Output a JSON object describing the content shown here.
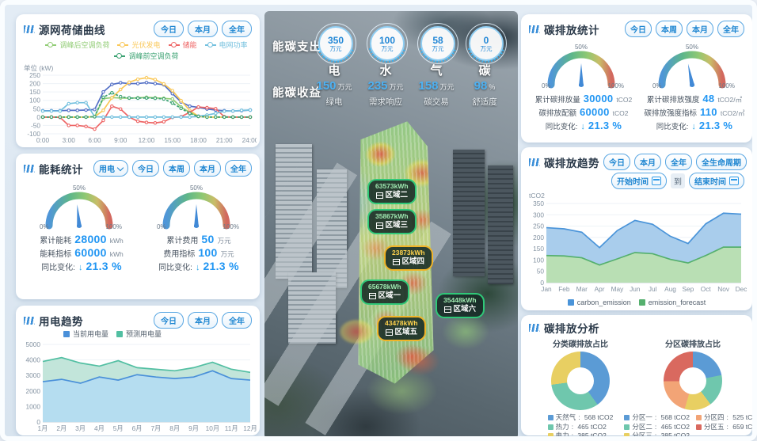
{
  "left": {
    "source_curve": {
      "title": "源网荷储曲线",
      "buttons": [
        "今日",
        "本月",
        "全年"
      ]
    },
    "energy_stats": {
      "title": "能耗统计",
      "dropdown": "用电",
      "buttons": [
        "今日",
        "本周",
        "本月",
        "全年"
      ],
      "gauges": [
        {
          "scale": [
            "0%",
            "50%",
            "100%"
          ],
          "pct": 0.47,
          "rows": [
            {
              "label": "累计能耗",
              "value": "28000",
              "unit": "kWh"
            },
            {
              "label": "能耗指标",
              "value": "60000",
              "unit": "kWh"
            }
          ],
          "yoy_label": "同比变化:",
          "yoy_arrow": "↓",
          "yoy_value": "21.3 %"
        },
        {
          "scale": [
            "0%",
            "50%",
            "100%"
          ],
          "pct": 0.5,
          "rows": [
            {
              "label": "累计费用",
              "value": "50",
              "unit": "万元"
            },
            {
              "label": "费用指标",
              "value": "100",
              "unit": "万元"
            }
          ],
          "yoy_label": "同比变化:",
          "yoy_arrow": "↓",
          "yoy_value": "21.3 %"
        }
      ]
    },
    "power_trend": {
      "title": "用电趋势",
      "buttons": [
        "今日",
        "本月",
        "全年"
      ]
    }
  },
  "center": {
    "expense": {
      "label": "能碳支出",
      "items": [
        {
          "value": "350",
          "unit": "万元",
          "name": "电"
        },
        {
          "value": "100",
          "unit": "万元",
          "name": "水"
        },
        {
          "value": "58",
          "unit": "万元",
          "name": "气"
        },
        {
          "value": "0",
          "unit": "万元",
          "name": "碳"
        }
      ]
    },
    "income": {
      "label": "能碳收益",
      "items": [
        {
          "value": "150",
          "unit": "万元",
          "name": "绿电"
        },
        {
          "value": "235",
          "unit": "万元",
          "name": "需求响应"
        },
        {
          "value": "158",
          "unit": "万元",
          "name": "碳交易"
        },
        {
          "value": "98",
          "unit": "%",
          "name": "舒适度"
        }
      ]
    },
    "zones": [
      {
        "value": "63573kWh",
        "name": "区域二",
        "style": "green"
      },
      {
        "value": "35867kWh",
        "name": "区域三",
        "style": "green"
      },
      {
        "value": "23873kWh",
        "name": "区域四",
        "style": "yellow"
      },
      {
        "value": "65678kWh",
        "name": "区域一",
        "style": "green"
      },
      {
        "value": "35448kWh",
        "name": "区域六",
        "style": "green"
      },
      {
        "value": "43478kWh",
        "name": "区域五",
        "style": "yellow"
      }
    ]
  },
  "right": {
    "carbon_stats": {
      "title": "碳排放统计",
      "buttons": [
        "今日",
        "本周",
        "本月",
        "全年"
      ],
      "gauges": [
        {
          "scale": [
            "0%",
            "50%",
            "100%"
          ],
          "pct": 0.5,
          "rows": [
            {
              "label": "累计碳排放量",
              "value": "30000",
              "unit": "tCO2"
            },
            {
              "label": "碳排放配额",
              "value": "60000",
              "unit": "tCO2"
            }
          ],
          "yoy_label": "同比变化:",
          "yoy_arrow": "↓",
          "yoy_value": "21.3 %"
        },
        {
          "scale": [
            "0%",
            "50%",
            "100%"
          ],
          "pct": 0.44,
          "rows": [
            {
              "label": "累计碳排放强度",
              "value": "48",
              "unit": "tCO2/㎡"
            },
            {
              "label": "碳排放强度指标",
              "value": "110",
              "unit": "tCO2/㎡"
            }
          ],
          "yoy_label": "同比变化:",
          "yoy_arrow": "↓",
          "yoy_value": "21.3 %"
        }
      ]
    },
    "carbon_trend": {
      "title": "碳排放趋势",
      "buttons": [
        "今日",
        "本月",
        "全年",
        "全生命周期"
      ],
      "date_start": "开始时间",
      "date_to": "到",
      "date_end": "结束时间"
    },
    "carbon_analysis": {
      "title": "碳排放分析"
    }
  },
  "chart_data": [
    {
      "id": "source_curve",
      "type": "line",
      "title": "源网荷储曲线",
      "ylabel": "单位 (kW)",
      "ylim": [
        -100,
        250
      ],
      "yticks": [
        250,
        200,
        150,
        100,
        50,
        0,
        -50,
        -100
      ],
      "x_labels": [
        "0:00",
        "3:00",
        "6:00",
        "9:00",
        "12:00",
        "15:00",
        "18:00",
        "21:00",
        "24:00"
      ],
      "label_every": 3,
      "markers": true,
      "legend_position": "top",
      "series": [
        {
          "name": "",
          "color": "#5470c6",
          "values": [
            38,
            38,
            38,
            40,
            40,
            42,
            45,
            150,
            195,
            205,
            200,
            200,
            206,
            200,
            193,
            140,
            90,
            65,
            58,
            48,
            42,
            38,
            36,
            38,
            42
          ]
        },
        {
          "name": "调峰后空调负荷",
          "color": "#91cc75",
          "values": [
            0,
            0,
            0,
            0,
            0,
            0,
            2,
            110,
            116,
            114,
            113,
            115,
            118,
            115,
            112,
            108,
            60,
            28,
            4,
            0,
            0,
            0,
            0,
            0,
            0
          ]
        },
        {
          "name": "光伏发电",
          "color": "#fac858",
          "values": [
            0,
            0,
            0,
            0,
            0,
            0,
            2,
            40,
            115,
            165,
            208,
            226,
            235,
            224,
            198,
            158,
            98,
            40,
            5,
            0,
            0,
            0,
            0,
            0,
            0
          ]
        },
        {
          "name": "储能",
          "color": "#ee6666",
          "values": [
            0,
            0,
            -2,
            -50,
            -50,
            -56,
            -72,
            -20,
            65,
            48,
            0,
            -25,
            -32,
            -35,
            -28,
            -2,
            2,
            28,
            60,
            56,
            50,
            2,
            0,
            0,
            0
          ]
        },
        {
          "name": "电网功率",
          "color": "#73c0de",
          "values": [
            36,
            36,
            36,
            80,
            86,
            86,
            2,
            0,
            0,
            0,
            0,
            0,
            0,
            0,
            0,
            0,
            0,
            0,
            5,
            12,
            22,
            35,
            36,
            40,
            42
          ]
        },
        {
          "name": "调峰前空调负荷",
          "color": "#3ba272",
          "dash": "3,2",
          "values": [
            0,
            0,
            0,
            0,
            0,
            0,
            2,
            118,
            145,
            122,
            114,
            113,
            114,
            112,
            108,
            84,
            52,
            22,
            4,
            0,
            0,
            0,
            0,
            0,
            0
          ]
        }
      ]
    },
    {
      "id": "power_trend",
      "type": "area",
      "title": "用电趋势",
      "ylim": [
        0,
        5000
      ],
      "yticks": [
        5000,
        4000,
        3000,
        2000,
        1000,
        0
      ],
      "categories": [
        "1月",
        "2月",
        "3月",
        "4月",
        "5月",
        "6月",
        "7月",
        "8月",
        "9月",
        "10月",
        "11月",
        "12月"
      ],
      "label_every": 1,
      "series": [
        {
          "name": "预测用电量",
          "color": "#52bfa2",
          "fill": "#c2e5da",
          "values": [
            3900,
            4150,
            3800,
            3600,
            3950,
            3500,
            3400,
            3300,
            3500,
            3850,
            3400,
            3200
          ]
        },
        {
          "name": "当前用电量",
          "color": "#4a90d9",
          "fill": "#b5ddf0",
          "values": [
            2600,
            2750,
            2500,
            2900,
            2700,
            3050,
            2900,
            2800,
            2900,
            3300,
            2800,
            2700
          ]
        }
      ]
    },
    {
      "id": "carbon_trend",
      "type": "area",
      "title": "碳排放趋势",
      "ylabel": "tCO2",
      "ylim": [
        0,
        350
      ],
      "yticks": [
        350,
        300,
        250,
        200,
        150,
        100,
        50,
        0
      ],
      "categories": [
        "Jan",
        "Feb",
        "Mar",
        "Apr",
        "May",
        "Jun",
        "Jul",
        "Aug",
        "Sep",
        "Oct",
        "Nov",
        "Dec"
      ],
      "label_every": 1,
      "legend_position": "bottom",
      "series": [
        {
          "name": "carbon_emission",
          "color": "#4a94d9",
          "fill": "#a9cdec",
          "values": [
            243,
            238,
            223,
            155,
            230,
            275,
            258,
            205,
            173,
            260,
            307,
            303
          ]
        },
        {
          "name": "emission_forecast",
          "color": "#55b06e",
          "fill": "#b9dfb4",
          "values": [
            120,
            118,
            110,
            78,
            105,
            133,
            128,
            103,
            87,
            120,
            157,
            157
          ]
        }
      ]
    },
    {
      "id": "category_donut",
      "type": "pie",
      "title": "分类碳排放占比",
      "unit": "tCO2",
      "items": [
        {
          "label": "天然气",
          "value": 568,
          "value_text": "568 tCO2",
          "color": "#5b9bd5"
        },
        {
          "label": "热力",
          "value": 465,
          "value_text": "465 tCO2",
          "color": "#6fc7ad"
        },
        {
          "label": "电力",
          "value": 385,
          "value_text": "385 tCO2",
          "color": "#e8cf62"
        }
      ]
    },
    {
      "id": "zone_donut",
      "type": "pie",
      "title": "分区碳排放占比",
      "unit": "tCO2",
      "items": [
        {
          "label": "分区一",
          "value": 568,
          "value_text": "568 tCO2",
          "color": "#5b9bd5"
        },
        {
          "label": "分区二",
          "value": 465,
          "value_text": "465 tCO2",
          "color": "#6fc7ad"
        },
        {
          "label": "分区三",
          "value": 385,
          "value_text": "385 tCO2",
          "color": "#e8cf62"
        },
        {
          "label": "分区四",
          "value": 525,
          "value_text": "525 tCO2",
          "color": "#f2a476"
        },
        {
          "label": "分区五",
          "value": 659,
          "value_text": "659 tCO2",
          "color": "#d9695f"
        }
      ]
    }
  ]
}
